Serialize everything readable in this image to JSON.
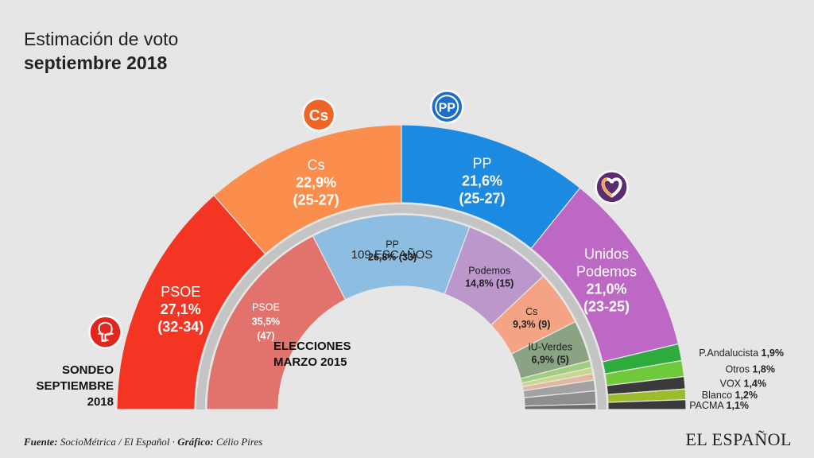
{
  "title": {
    "line1": "Estimación de voto",
    "line2": "septiembre 2018"
  },
  "chart_data": [
    {
      "type": "pie",
      "variant": "half-donut-outer",
      "label": "SONDEO SEPTIEMBRE 2018",
      "slices": [
        {
          "name": "PSOE",
          "pct_label": "27,1%",
          "value": 27.1,
          "seats": "(32-34)",
          "color": "#f43523",
          "icon": "psoe-rose-icon"
        },
        {
          "name": "Cs",
          "pct_label": "22,9%",
          "value": 22.9,
          "seats": "(25-27)",
          "color": "#fb8d4d",
          "icon": "cs-logo-icon"
        },
        {
          "name": "PP",
          "pct_label": "21,6%",
          "value": 21.6,
          "seats": "(25-27)",
          "color": "#1c8ae0",
          "icon": "pp-logo-icon"
        },
        {
          "name": "Unidos Podemos",
          "pct_label": "21,0%",
          "value": 21.0,
          "seats": "(23-25)",
          "color": "#bc68c4",
          "icon": "podemos-heart-icon"
        },
        {
          "name": "P.Andalucista",
          "pct_label": "1,9%",
          "value": 1.9,
          "color": "#2eab3d"
        },
        {
          "name": "Otros",
          "pct_label": "1,8%",
          "value": 1.8,
          "color": "#6fc93b"
        },
        {
          "name": "VOX",
          "pct_label": "1,4%",
          "value": 1.4,
          "color": "#3a3a3a"
        },
        {
          "name": "Blanco",
          "pct_label": "1,2%",
          "value": 1.2,
          "color": "#9cbc2b"
        },
        {
          "name": "PACMA",
          "pct_label": "1,1%",
          "value": 1.1,
          "color": "#3a3a3a"
        }
      ]
    },
    {
      "type": "pie",
      "variant": "half-donut-inner",
      "label": "ELECCIONES MARZO 2015",
      "center_label": "109 ESCAÑOS",
      "slices": [
        {
          "name": "PSOE",
          "pct_label": "35,5%",
          "value": 35.5,
          "seats": "(47)",
          "color": "#e1726c"
        },
        {
          "name": "PP",
          "pct_label": "26,8%",
          "value": 26.8,
          "seats": "(33)",
          "color": "#8dbde1"
        },
        {
          "name": "Podemos",
          "pct_label": "14,8%",
          "value": 14.8,
          "seats": "(15)",
          "color": "#bb97cb"
        },
        {
          "name": "Cs",
          "pct_label": "9,3%",
          "value": 9.3,
          "seats": "(9)",
          "color": "#f4a485"
        },
        {
          "name": "IU-Verdes",
          "pct_label": "6,9%",
          "value": 6.9,
          "seats": "(5)",
          "color": "#8aa383"
        },
        {
          "value": 1.2,
          "color": "#9fcf7e"
        },
        {
          "value": 1.0,
          "color": "#c9d68d"
        },
        {
          "value": 1.1,
          "color": "#e3b8a1"
        },
        {
          "value": 1.8,
          "color": "#a2a2a2"
        },
        {
          "value": 2.2,
          "color": "#8e8e8e"
        },
        {
          "value": 0.9,
          "color": "#6b6b6b"
        }
      ]
    }
  ],
  "outer_label": [
    "SONDEO",
    "SEPTIEMBRE",
    "2018"
  ],
  "inner_label": [
    "ELECCIONES",
    "MARZO 2015"
  ],
  "footer": {
    "source_label": "Fuente:",
    "source_value": " SocioMétrica / El Español · ",
    "graphic_label": "Gráfico:",
    "graphic_value": " Célio Pires"
  },
  "brand": "EL ESPAÑOL"
}
